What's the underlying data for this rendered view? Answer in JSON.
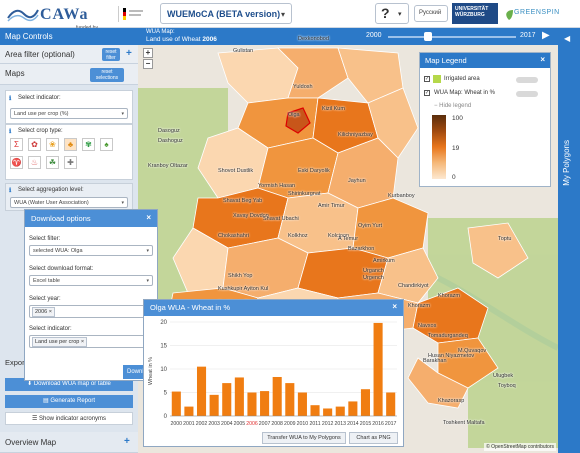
{
  "topbar": {
    "logo_text": "CAWa",
    "funded_by": "funded by",
    "app_title": "WUEMoCA (BETA version)",
    "help_label": "?",
    "language": "Русский",
    "university": "UNIVERSITÄT WÜRZBURG",
    "partner": "GREENSPIN"
  },
  "left": {
    "header": "Map Controls",
    "area_filter": {
      "label": "Area filter (optional)",
      "button": "reset filter"
    },
    "maps": {
      "label": "Maps",
      "button": "reset selections"
    },
    "indicator": {
      "label": "Select indicator:",
      "value": "Land use per crop (%)"
    },
    "crop": {
      "label": "Select crop type:",
      "icons": [
        "Σ",
        "✿",
        "❀",
        "♣",
        "✾",
        "♠",
        "♈",
        "♨",
        "☘",
        "✚"
      ]
    },
    "aggregation": {
      "label": "Select aggregation level:",
      "value": "WUA (Water User Association)"
    },
    "export_label": "Expor",
    "download_button": "Download WUA map or table",
    "report_button": "Generate Report",
    "acronyms_button": "Show indicator acronyms",
    "overview_label": "Overview Map"
  },
  "map": {
    "title_line1": "WUA Map:",
    "title_line2": "Land use of Wheat",
    "title_year": "2006",
    "slider": {
      "start": "2000",
      "end": "2017"
    },
    "attribution": "© OpenStreetMap contributors",
    "labels": [
      "Gulistan",
      "Dexkonobod",
      "Yuldosh",
      "Kizil Kum",
      "Kilichniyazbay",
      "Dasoguz",
      "Dashoguz",
      "Kranboy Oltazar",
      "Shovot Dustlik",
      "Eski Daryolik",
      "Jayhun",
      "Yormish Hasan",
      "Shirinkurgnat",
      "Shavat Beg Yab",
      "Amir Timur",
      "Xavay Dovdon",
      "Shavat Ubachi",
      "Oyim Yurt",
      "Kurbanboy",
      "Kolkhoz",
      "Bazarkhon",
      "Kolcioon",
      "A Temur",
      "Chokashahri",
      "Amirkum",
      "Urganch",
      "Urgench",
      "Shikh Yop",
      "Kushkupir Ayiton Kul",
      "Chandirkiyot",
      "Kushkupir Chukur Kul",
      "Kenegas Yop",
      "Polvon-yop",
      "Khorazm",
      "Kushkupir Honobod Zey Yo",
      "Navxos",
      "Kushkupir Tagalak Yop",
      "Khiva Obu-Hayot",
      "Husan Niyazmetov",
      "Kushkupir Khalkobod",
      "Pitnak",
      "Tomadurgandeq",
      "Barakhan",
      "M.Quvaqov",
      "Khorazm",
      "Khazorasp",
      "Toshkent Maltafa",
      "Ulugbek",
      "Toyboq",
      "Toptu",
      "Olga"
    ]
  },
  "legend": {
    "title": "Map Legend",
    "irrigated": "Irrigated area",
    "wua_layer": "WUA Map: Wheat in %",
    "hide": "Hide legend",
    "max": "100",
    "mid": "19",
    "min": "0"
  },
  "right_strip": {
    "label": "My Polygons"
  },
  "download": {
    "title": "Download options",
    "filter_label": "Select filter:",
    "filter_value": "selected WUA: Olga",
    "format_label": "Select download format:",
    "format_value": "Excel table",
    "year_label": "Select year:",
    "year_tag": "2006",
    "indicator_label": "Select indicator:",
    "indicator_tag": "Land use per crop",
    "download_button": "Downl"
  },
  "chart_panel": {
    "title": "Olga WUA - Wheat in %",
    "transfer_button": "Transfer WUA to My Polygons",
    "png_button": "Chart as PNG"
  },
  "chart_data": {
    "type": "bar",
    "categories": [
      "2000",
      "2001",
      "2002",
      "2003",
      "2004",
      "2005",
      "2006",
      "2007",
      "2008",
      "2009",
      "2010",
      "2011",
      "2012",
      "2013",
      "2014",
      "2015",
      "2016",
      "2017"
    ],
    "values": [
      5.2,
      2.0,
      10.5,
      4.5,
      7.0,
      8.2,
      5.0,
      5.3,
      8.3,
      7.0,
      5.0,
      2.3,
      1.6,
      2.0,
      3.1,
      5.7,
      19.8,
      5.0
    ],
    "highlight_index": 6,
    "ylabel": "Wheat in %",
    "ylim": [
      0,
      20
    ],
    "yticks": [
      0,
      5,
      10,
      15,
      20
    ],
    "bar_color": "#f07d11",
    "highlight_label_color": "#e03030"
  }
}
